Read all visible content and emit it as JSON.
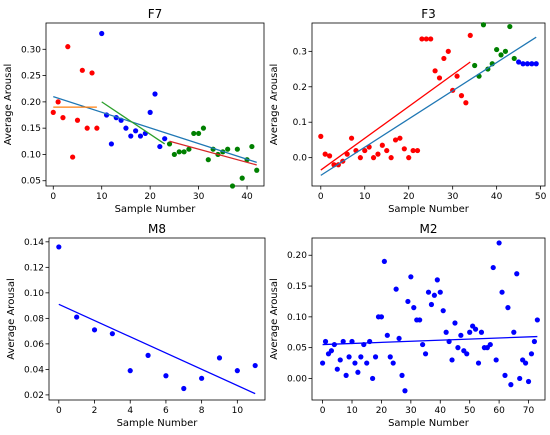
{
  "chart_data": [
    {
      "type": "scatter",
      "title": "F7",
      "xlabel": "Sample Number",
      "ylabel": "Average Arousal",
      "xlim": [
        -1.5,
        43.5
      ],
      "ylim": [
        0.04,
        0.35
      ],
      "xticks": [
        0,
        10,
        20,
        30,
        40
      ],
      "yticks": [
        0.05,
        0.1,
        0.15,
        0.2,
        0.25,
        0.3
      ],
      "ytick_decimals": 2,
      "series": [
        {
          "color": "#ff0000",
          "points": [
            [
              0,
              0.18
            ],
            [
              1,
              0.2
            ],
            [
              2,
              0.17
            ],
            [
              3,
              0.305
            ],
            [
              4,
              0.095
            ],
            [
              5,
              0.165
            ],
            [
              6,
              0.26
            ],
            [
              7,
              0.15
            ],
            [
              8,
              0.255
            ],
            [
              9,
              0.15
            ]
          ]
        },
        {
          "color": "#0000ff",
          "points": [
            [
              10,
              0.33
            ],
            [
              11,
              0.175
            ],
            [
              12,
              0.12
            ],
            [
              13,
              0.17
            ],
            [
              14,
              0.165
            ],
            [
              15,
              0.15
            ],
            [
              16,
              0.135
            ],
            [
              17,
              0.145
            ],
            [
              18,
              0.135
            ],
            [
              19,
              0.14
            ],
            [
              20,
              0.18
            ],
            [
              21,
              0.215
            ],
            [
              22,
              0.115
            ],
            [
              23,
              0.13
            ]
          ]
        },
        {
          "color": "#008000",
          "points": [
            [
              24,
              0.12
            ],
            [
              25,
              0.1
            ],
            [
              26,
              0.105
            ],
            [
              27,
              0.105
            ],
            [
              28,
              0.11
            ],
            [
              29,
              0.14
            ],
            [
              30,
              0.14
            ],
            [
              31,
              0.15
            ],
            [
              32,
              0.09
            ],
            [
              33,
              0.11
            ],
            [
              34,
              0.1
            ],
            [
              35,
              0.105
            ],
            [
              36,
              0.11
            ],
            [
              37,
              0.04
            ],
            [
              38,
              0.11
            ],
            [
              39,
              0.055
            ],
            [
              40,
              0.09
            ],
            [
              41,
              0.115
            ],
            [
              42,
              0.07
            ]
          ]
        }
      ],
      "fit_lines": [
        {
          "color": "#1f77b4",
          "from": [
            0,
            0.21
          ],
          "to": [
            42,
            0.085
          ]
        },
        {
          "color": "#ff7f0e",
          "from": [
            0,
            0.19
          ],
          "to": [
            9,
            0.19
          ]
        },
        {
          "color": "#2ca02c",
          "from": [
            10,
            0.2
          ],
          "to": [
            23,
            0.12
          ]
        },
        {
          "color": "#d62728",
          "from": [
            24,
            0.125
          ],
          "to": [
            42,
            0.08
          ]
        }
      ]
    },
    {
      "type": "scatter",
      "title": "F3",
      "xlabel": "Sample Number",
      "ylabel": "Average Arousal",
      "xlim": [
        -2,
        51
      ],
      "ylim": [
        -0.08,
        0.38
      ],
      "xticks": [
        0,
        10,
        20,
        30,
        40,
        50
      ],
      "yticks": [
        0.0,
        0.1,
        0.2,
        0.3
      ],
      "ytick_decimals": 1,
      "series": [
        {
          "color": "#ff0000",
          "points": [
            [
              0,
              0.06
            ],
            [
              1,
              0.01
            ],
            [
              2,
              0.005
            ],
            [
              3,
              -0.02
            ],
            [
              4,
              -0.02
            ],
            [
              5,
              -0.01
            ],
            [
              6,
              0.01
            ],
            [
              7,
              0.055
            ],
            [
              8,
              0.02
            ],
            [
              9,
              0.0
            ],
            [
              10,
              0.02
            ],
            [
              11,
              0.03
            ],
            [
              12,
              0.0
            ],
            [
              13,
              0.01
            ],
            [
              14,
              0.035
            ],
            [
              15,
              0.02
            ],
            [
              16,
              0.0
            ],
            [
              17,
              0.05
            ],
            [
              18,
              0.055
            ],
            [
              19,
              0.025
            ],
            [
              20,
              0.0
            ],
            [
              21,
              0.02
            ],
            [
              22,
              0.02
            ],
            [
              23,
              0.335
            ],
            [
              24,
              0.335
            ],
            [
              25,
              0.335
            ],
            [
              26,
              0.245
            ],
            [
              27,
              0.225
            ],
            [
              28,
              0.28
            ],
            [
              29,
              0.3
            ],
            [
              30,
              0.19
            ],
            [
              31,
              0.23
            ],
            [
              32,
              0.175
            ],
            [
              33,
              0.155
            ],
            [
              34,
              0.345
            ]
          ]
        },
        {
          "color": "#008000",
          "points": [
            [
              35,
              0.26
            ],
            [
              36,
              0.23
            ],
            [
              37,
              0.375
            ],
            [
              38,
              0.25
            ],
            [
              39,
              0.265
            ],
            [
              40,
              0.305
            ],
            [
              41,
              0.29
            ],
            [
              42,
              0.3
            ],
            [
              43,
              0.37
            ],
            [
              44,
              0.28
            ]
          ]
        },
        {
          "color": "#0000ff",
          "points": [
            [
              45,
              0.27
            ],
            [
              46,
              0.265
            ],
            [
              47,
              0.265
            ],
            [
              48,
              0.265
            ],
            [
              49,
              0.265
            ]
          ]
        }
      ],
      "fit_lines": [
        {
          "color": "#1f77b4",
          "from": [
            0,
            -0.05
          ],
          "to": [
            49,
            0.34
          ]
        },
        {
          "color": "#ff0000",
          "from": [
            0,
            -0.035
          ],
          "to": [
            34,
            0.27
          ]
        }
      ]
    },
    {
      "type": "scatter",
      "title": "M8",
      "xlabel": "Sample Number",
      "ylabel": "Average Arousal",
      "xlim": [
        -0.55,
        11.55
      ],
      "ylim": [
        0.016,
        0.143
      ],
      "xticks": [
        0,
        2,
        4,
        6,
        8,
        10
      ],
      "yticks": [
        0.02,
        0.04,
        0.06,
        0.08,
        0.1,
        0.12,
        0.14
      ],
      "ytick_decimals": 2,
      "series": [
        {
          "color": "#0000ff",
          "points": [
            [
              0,
              0.136
            ],
            [
              1,
              0.081
            ],
            [
              2,
              0.071
            ],
            [
              3,
              0.068
            ],
            [
              4,
              0.039
            ],
            [
              5,
              0.051
            ],
            [
              6,
              0.035
            ],
            [
              7,
              0.025
            ],
            [
              8,
              0.033
            ],
            [
              9,
              0.049
            ],
            [
              10,
              0.039
            ],
            [
              11,
              0.043
            ]
          ]
        }
      ],
      "fit_lines": [
        {
          "color": "#0000ff",
          "from": [
            0,
            0.091
          ],
          "to": [
            11,
            0.021
          ]
        }
      ]
    },
    {
      "type": "scatter",
      "title": "M2",
      "xlabel": "Sample Number",
      "ylabel": "Average Arousal",
      "xlim": [
        -3.6,
        75.6
      ],
      "ylim": [
        -0.035,
        0.228
      ],
      "xticks": [
        0,
        10,
        20,
        30,
        40,
        50,
        60,
        70
      ],
      "yticks": [
        0.0,
        0.05,
        0.1,
        0.15,
        0.2
      ],
      "ytick_decimals": 2,
      "series": [
        {
          "color": "#0000ff",
          "points": [
            [
              0,
              0.025
            ],
            [
              1,
              0.06
            ],
            [
              2,
              0.04
            ],
            [
              3,
              0.045
            ],
            [
              4,
              0.055
            ],
            [
              5,
              0.015
            ],
            [
              6,
              0.03
            ],
            [
              7,
              0.06
            ],
            [
              8,
              0.005
            ],
            [
              9,
              0.035
            ],
            [
              10,
              0.06
            ],
            [
              11,
              0.025
            ],
            [
              12,
              0.01
            ],
            [
              13,
              0.035
            ],
            [
              14,
              0.055
            ],
            [
              15,
              0.025
            ],
            [
              16,
              0.06
            ],
            [
              17,
              0.0
            ],
            [
              18,
              0.035
            ],
            [
              19,
              0.1
            ],
            [
              20,
              0.1
            ],
            [
              21,
              0.19
            ],
            [
              22,
              0.07
            ],
            [
              23,
              0.035
            ],
            [
              24,
              0.025
            ],
            [
              25,
              0.145
            ],
            [
              26,
              0.065
            ],
            [
              27,
              0.005
            ],
            [
              28,
              -0.02
            ],
            [
              29,
              0.125
            ],
            [
              30,
              0.165
            ],
            [
              31,
              0.115
            ],
            [
              32,
              0.095
            ],
            [
              33,
              0.095
            ],
            [
              34,
              0.055
            ],
            [
              35,
              0.04
            ],
            [
              36,
              0.14
            ],
            [
              37,
              0.12
            ],
            [
              38,
              0.135
            ],
            [
              39,
              0.16
            ],
            [
              40,
              0.14
            ],
            [
              41,
              0.11
            ],
            [
              42,
              0.075
            ],
            [
              43,
              0.06
            ],
            [
              44,
              0.03
            ],
            [
              45,
              0.09
            ],
            [
              46,
              0.05
            ],
            [
              47,
              0.07
            ],
            [
              48,
              0.045
            ],
            [
              49,
              0.04
            ],
            [
              50,
              0.075
            ],
            [
              51,
              0.085
            ],
            [
              52,
              0.08
            ],
            [
              53,
              0.025
            ],
            [
              54,
              0.075
            ],
            [
              55,
              0.05
            ],
            [
              56,
              0.05
            ],
            [
              57,
              0.055
            ],
            [
              58,
              0.18
            ],
            [
              59,
              0.03
            ],
            [
              60,
              0.22
            ],
            [
              61,
              0.14
            ],
            [
              62,
              0.005
            ],
            [
              63,
              0.115
            ],
            [
              64,
              -0.01
            ],
            [
              65,
              0.075
            ],
            [
              66,
              0.17
            ],
            [
              67,
              0.0
            ],
            [
              68,
              0.03
            ],
            [
              69,
              0.025
            ],
            [
              70,
              -0.005
            ],
            [
              71,
              0.04
            ],
            [
              72,
              0.06
            ],
            [
              73,
              0.095
            ]
          ]
        }
      ],
      "fit_lines": [
        {
          "color": "#0000ff",
          "from": [
            0,
            0.055
          ],
          "to": [
            73,
            0.068
          ]
        }
      ]
    }
  ]
}
